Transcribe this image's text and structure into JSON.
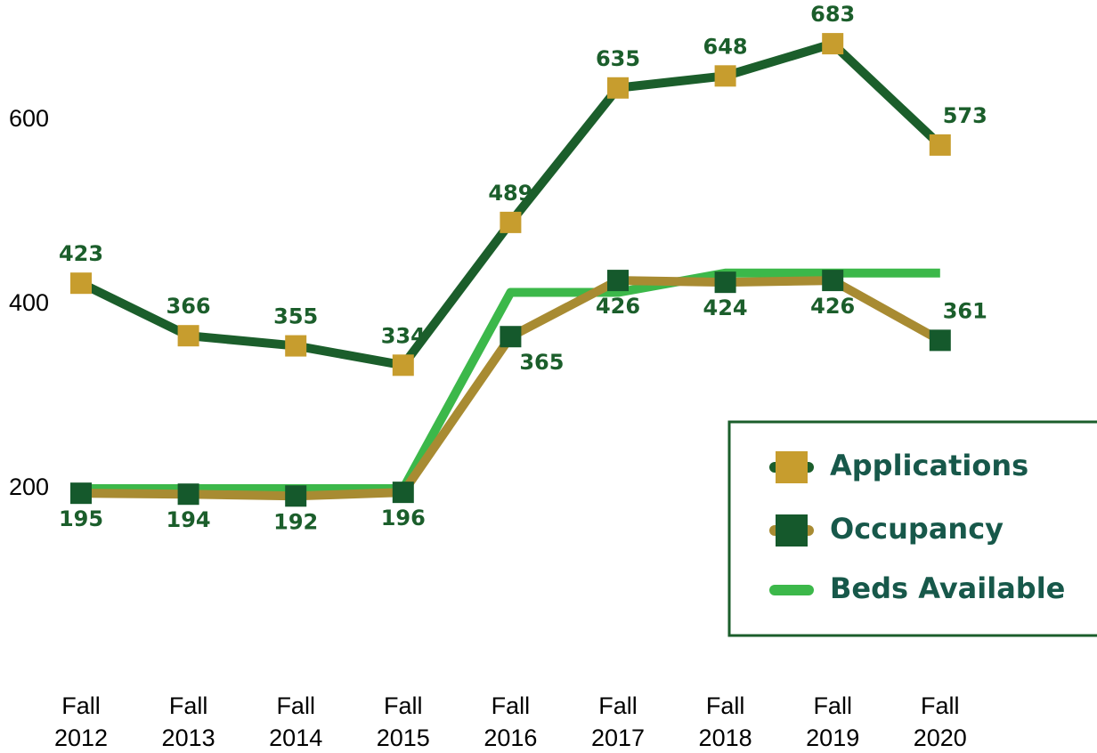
{
  "chart_data": {
    "type": "line",
    "categories": [
      "Fall 2012",
      "Fall 2013",
      "Fall 2014",
      "Fall 2015",
      "Fall 2016",
      "Fall 2017",
      "Fall 2018",
      "Fall 2019",
      "Fall 2020"
    ],
    "series": [
      {
        "name": "Applications",
        "color": "#1b5e2b",
        "marker_color": "#c79d2e",
        "values": [
          423,
          366,
          355,
          334,
          489,
          635,
          648,
          683,
          573
        ]
      },
      {
        "name": "Occupancy",
        "color": "#a88b32",
        "marker_color": "#15592c",
        "values": [
          195,
          194,
          192,
          196,
          365,
          426,
          424,
          426,
          361
        ]
      },
      {
        "name": "Beds Available",
        "color": "#3cb84a",
        "values": [
          200,
          200,
          200,
          200,
          413,
          413,
          434,
          434,
          434
        ]
      }
    ],
    "ylim": [
      100,
      720
    ],
    "yticks": [
      200,
      400,
      600
    ],
    "grid": false,
    "legend": "lower right"
  }
}
